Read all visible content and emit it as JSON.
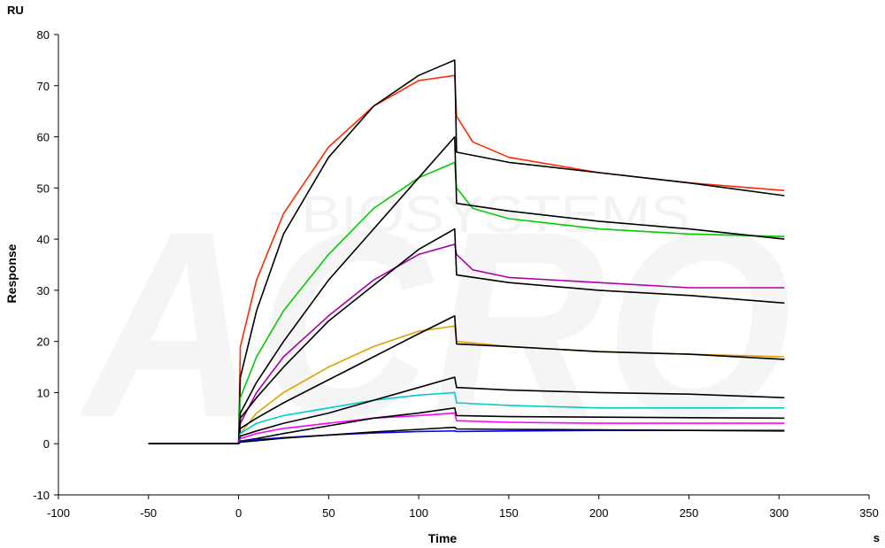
{
  "chart_data": {
    "type": "line",
    "title": "",
    "xlabel": "Time",
    "ylabel": "Response",
    "x_unit": "s",
    "y_unit": "RU",
    "xlim": [
      -100,
      350
    ],
    "ylim": [
      -10,
      80
    ],
    "x_ticks": [
      -100,
      -50,
      0,
      50,
      100,
      150,
      200,
      250,
      300,
      350
    ],
    "y_ticks": [
      -10,
      0,
      10,
      20,
      30,
      40,
      50,
      60,
      70,
      80
    ],
    "x_tick_labels": [
      "-100",
      "-50",
      "0",
      "50",
      "100",
      "150",
      "200",
      "250",
      "300",
      "350"
    ],
    "y_tick_labels": [
      "-10",
      "0",
      "10",
      "20",
      "30",
      "40",
      "50",
      "60",
      "70",
      "80"
    ],
    "grid": false,
    "legend": "none",
    "watermark": {
      "logo_text": "ACRO",
      "text": "BIOSYSTEMS"
    },
    "series": [
      {
        "color": "#ff2a00",
        "points": [
          [
            -50,
            0
          ],
          [
            0,
            0
          ],
          [
            1,
            19
          ],
          [
            10,
            32
          ],
          [
            25,
            45
          ],
          [
            50,
            58
          ],
          [
            75,
            66
          ],
          [
            100,
            71
          ],
          [
            120,
            72
          ],
          [
            121,
            64
          ],
          [
            130,
            59
          ],
          [
            150,
            56
          ],
          [
            200,
            53
          ],
          [
            250,
            51
          ],
          [
            303,
            49.5
          ]
        ]
      },
      {
        "color": "#000000",
        "points": [
          [
            -50,
            0
          ],
          [
            0,
            0
          ],
          [
            1,
            13
          ],
          [
            10,
            26
          ],
          [
            25,
            41
          ],
          [
            50,
            56
          ],
          [
            75,
            66
          ],
          [
            100,
            72
          ],
          [
            120,
            75
          ],
          [
            121,
            57
          ],
          [
            150,
            55
          ],
          [
            200,
            53
          ],
          [
            250,
            51
          ],
          [
            303,
            48.5
          ]
        ]
      },
      {
        "color": "#00cc00",
        "points": [
          [
            -50,
            0
          ],
          [
            0,
            0
          ],
          [
            1,
            9
          ],
          [
            10,
            17
          ],
          [
            25,
            26
          ],
          [
            50,
            37
          ],
          [
            75,
            46
          ],
          [
            100,
            52
          ],
          [
            120,
            55
          ],
          [
            121,
            50
          ],
          [
            130,
            46
          ],
          [
            150,
            44
          ],
          [
            200,
            42
          ],
          [
            250,
            41
          ],
          [
            303,
            40.5
          ]
        ]
      },
      {
        "color": "#000000",
        "points": [
          [
            -50,
            0
          ],
          [
            0,
            0
          ],
          [
            1,
            6
          ],
          [
            10,
            12
          ],
          [
            25,
            20
          ],
          [
            50,
            32
          ],
          [
            75,
            42
          ],
          [
            100,
            52
          ],
          [
            120,
            60
          ],
          [
            121,
            47
          ],
          [
            150,
            45.5
          ],
          [
            200,
            43.5
          ],
          [
            250,
            42
          ],
          [
            303,
            40
          ]
        ]
      },
      {
        "color": "#aa00aa",
        "points": [
          [
            -50,
            0
          ],
          [
            0,
            0
          ],
          [
            1,
            4
          ],
          [
            10,
            10
          ],
          [
            25,
            17
          ],
          [
            50,
            25
          ],
          [
            75,
            32
          ],
          [
            100,
            37
          ],
          [
            120,
            39
          ],
          [
            121,
            37
          ],
          [
            130,
            34
          ],
          [
            150,
            32.5
          ],
          [
            200,
            31.5
          ],
          [
            250,
            30.5
          ],
          [
            303,
            30.5
          ]
        ]
      },
      {
        "color": "#000000",
        "points": [
          [
            -50,
            0
          ],
          [
            0,
            0
          ],
          [
            1,
            5
          ],
          [
            10,
            9
          ],
          [
            25,
            15
          ],
          [
            50,
            24
          ],
          [
            75,
            31
          ],
          [
            100,
            38
          ],
          [
            120,
            42
          ],
          [
            121,
            33
          ],
          [
            150,
            31.5
          ],
          [
            200,
            30
          ],
          [
            250,
            29
          ],
          [
            303,
            27.5
          ]
        ]
      },
      {
        "color": "#e0a000",
        "points": [
          [
            -50,
            0
          ],
          [
            0,
            0
          ],
          [
            1,
            2
          ],
          [
            10,
            6
          ],
          [
            25,
            10
          ],
          [
            50,
            15
          ],
          [
            75,
            19
          ],
          [
            100,
            22
          ],
          [
            120,
            23
          ],
          [
            121,
            20
          ],
          [
            150,
            19
          ],
          [
            200,
            18
          ],
          [
            250,
            17.5
          ],
          [
            303,
            17
          ]
        ]
      },
      {
        "color": "#000000",
        "points": [
          [
            -50,
            0
          ],
          [
            0,
            0
          ],
          [
            1,
            3
          ],
          [
            10,
            5
          ],
          [
            25,
            8
          ],
          [
            50,
            12.5
          ],
          [
            75,
            17
          ],
          [
            100,
            21.5
          ],
          [
            120,
            25
          ],
          [
            121,
            19.5
          ],
          [
            150,
            19
          ],
          [
            200,
            18
          ],
          [
            250,
            17.5
          ],
          [
            303,
            16.5
          ]
        ]
      },
      {
        "color": "#00cccc",
        "points": [
          [
            -50,
            0
          ],
          [
            0,
            0
          ],
          [
            1,
            2
          ],
          [
            10,
            4
          ],
          [
            25,
            5.5
          ],
          [
            50,
            7
          ],
          [
            75,
            8.5
          ],
          [
            100,
            9.5
          ],
          [
            120,
            10
          ],
          [
            121,
            8
          ],
          [
            150,
            7.5
          ],
          [
            200,
            7
          ],
          [
            250,
            7
          ],
          [
            303,
            7
          ]
        ]
      },
      {
        "color": "#000000",
        "points": [
          [
            -50,
            0
          ],
          [
            0,
            0
          ],
          [
            1,
            1.5
          ],
          [
            10,
            2.5
          ],
          [
            25,
            4
          ],
          [
            50,
            6
          ],
          [
            75,
            8.5
          ],
          [
            100,
            11
          ],
          [
            120,
            13
          ],
          [
            121,
            11
          ],
          [
            150,
            10.5
          ],
          [
            200,
            10
          ],
          [
            250,
            9.7
          ],
          [
            303,
            9
          ]
        ]
      },
      {
        "color": "#ff00ff",
        "points": [
          [
            -50,
            0
          ],
          [
            0,
            0
          ],
          [
            1,
            1
          ],
          [
            10,
            2
          ],
          [
            25,
            3
          ],
          [
            50,
            4
          ],
          [
            75,
            5
          ],
          [
            100,
            5.5
          ],
          [
            120,
            6
          ],
          [
            121,
            4.5
          ],
          [
            150,
            4.2
          ],
          [
            200,
            4
          ],
          [
            250,
            4
          ],
          [
            303,
            4
          ]
        ]
      },
      {
        "color": "#000000",
        "points": [
          [
            -50,
            0
          ],
          [
            0,
            0
          ],
          [
            1,
            0.5
          ],
          [
            10,
            1
          ],
          [
            25,
            2
          ],
          [
            50,
            3.5
          ],
          [
            75,
            5
          ],
          [
            100,
            6
          ],
          [
            120,
            7
          ],
          [
            121,
            5.5
          ],
          [
            150,
            5.3
          ],
          [
            200,
            5.2
          ],
          [
            250,
            5.1
          ],
          [
            303,
            5
          ]
        ]
      },
      {
        "color": "#0000ff",
        "points": [
          [
            -50,
            0
          ],
          [
            0,
            0
          ],
          [
            1,
            0.5
          ],
          [
            10,
            0.8
          ],
          [
            25,
            1.2
          ],
          [
            50,
            1.7
          ],
          [
            75,
            2.1
          ],
          [
            100,
            2.4
          ],
          [
            120,
            2.5
          ],
          [
            121,
            2.4
          ],
          [
            150,
            2.5
          ],
          [
            200,
            2.6
          ],
          [
            250,
            2.6
          ],
          [
            303,
            2.6
          ]
        ]
      },
      {
        "color": "#000000",
        "points": [
          [
            -50,
            0
          ],
          [
            0,
            0
          ],
          [
            1,
            0.3
          ],
          [
            10,
            0.6
          ],
          [
            25,
            1.1
          ],
          [
            50,
            1.7
          ],
          [
            75,
            2.3
          ],
          [
            100,
            2.8
          ],
          [
            120,
            3.2
          ],
          [
            121,
            2.9
          ],
          [
            150,
            2.8
          ],
          [
            200,
            2.7
          ],
          [
            250,
            2.6
          ],
          [
            303,
            2.5
          ]
        ]
      }
    ]
  }
}
